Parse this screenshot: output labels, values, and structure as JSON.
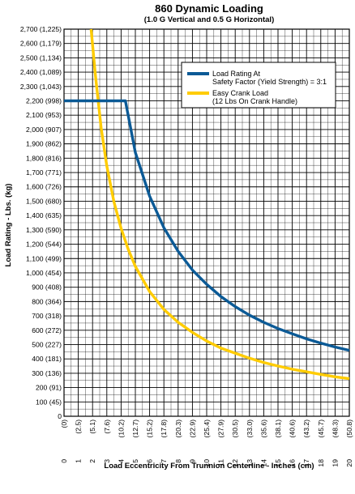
{
  "chart_data": {
    "type": "line",
    "title": "860 Dynamic Loading",
    "subtitle": "(1.0 G Vertical and 0.5 G Horizontal)",
    "xlabel": "Load Eccentricity From Trunnion Centerline - Inches (cm)",
    "ylabel": "Load Rating - Lbs. (kg)",
    "xlim": [
      0,
      20
    ],
    "ylim": [
      0,
      2700
    ],
    "grid": true,
    "legend_position": "top-right",
    "x_ticks": [
      0,
      1,
      2,
      3,
      4,
      5,
      6,
      7,
      8,
      9,
      10,
      11,
      12,
      13,
      14,
      15,
      16,
      17,
      18,
      19,
      20
    ],
    "x_ticks_labels": [
      "0",
      "1",
      "2",
      "3",
      "4",
      "5",
      "6",
      "7",
      "8",
      "9",
      "10",
      "11",
      "12",
      "13",
      "14",
      "15",
      "16",
      "17",
      "18",
      "19",
      "20"
    ],
    "x_ticks_cm_labels": [
      "(0)",
      "(2.5)",
      "(5.1)",
      "(7.6)",
      "(10.2)",
      "(12.7)",
      "(15.2)",
      "(17.8)",
      "(20.3)",
      "(22.9)",
      "(25.4)",
      "(27.9)",
      "(30.5)",
      "(33.0)",
      "(35.6)",
      "(38.1)",
      "(40.6)",
      "(43.2)",
      "(45.7)",
      "(48.3)",
      "(50.8)"
    ],
    "y_ticks": [
      0,
      100,
      200,
      300,
      400,
      500,
      600,
      700,
      800,
      900,
      1000,
      1100,
      1200,
      1300,
      1400,
      1500,
      1600,
      1700,
      1800,
      1900,
      2000,
      2100,
      2200,
      2300,
      2400,
      2500,
      2600,
      2700
    ],
    "y_ticks_labels": [
      "0",
      "100 (45)",
      "200 (91)",
      "300 (136)",
      "400 (181)",
      "500 (227)",
      "600 (272)",
      "700 (318)",
      "800 (364)",
      "900 (408)",
      "1,000 (454)",
      "1,100 (499)",
      "1,200 (544)",
      "1,300 (590)",
      "1,400 (635)",
      "1,500 (680)",
      "1,600 (726)",
      "1,700 (771)",
      "1,800 (816)",
      "1,900 (862)",
      "2,000 (907)",
      "2,100 (953)",
      "2,200 (998)",
      "2,300 (1,043)",
      "2,400 (1,089)",
      "2,500 (1,134)",
      "2,600 (1,179)",
      "2,700 (1,225)"
    ],
    "y_ticks_zero_kg": "(0)",
    "series": [
      {
        "name": "Load Rating At Safety Factor (Yield Strength) = 3:1",
        "legend_lines": [
          "Load Rating At",
          "Safety Factor (Yield Strength) = 3:1"
        ],
        "color": "#0b5a96",
        "x": [
          0,
          1,
          2,
          3,
          4,
          4.3,
          5,
          6,
          7,
          8,
          9,
          10,
          11,
          12,
          13,
          14,
          15,
          16,
          17,
          18,
          19,
          20
        ],
        "y": [
          2200,
          2200,
          2200,
          2200,
          2200,
          2200,
          1840,
          1535,
          1315,
          1150,
          1020,
          920,
          835,
          765,
          705,
          655,
          612,
          575,
          540,
          510,
          483,
          460
        ]
      },
      {
        "name": "Easy Crank Load (12 Lbs On Crank Handle)",
        "legend_lines": [
          "Easy Crank Load",
          "(12 Lbs On Crank Handle)"
        ],
        "color": "#ffcc00",
        "x": [
          1.9,
          2.2,
          2.6,
          3,
          3.5,
          4,
          4.5,
          5,
          6,
          7,
          8,
          9,
          10,
          11,
          12,
          13,
          14,
          15,
          16,
          17,
          18,
          19,
          20
        ],
        "y": [
          2700,
          2380,
          2010,
          1745,
          1495,
          1310,
          1165,
          1045,
          870,
          745,
          655,
          585,
          525,
          475,
          440,
          405,
          375,
          350,
          328,
          310,
          292,
          275,
          262
        ]
      }
    ]
  }
}
